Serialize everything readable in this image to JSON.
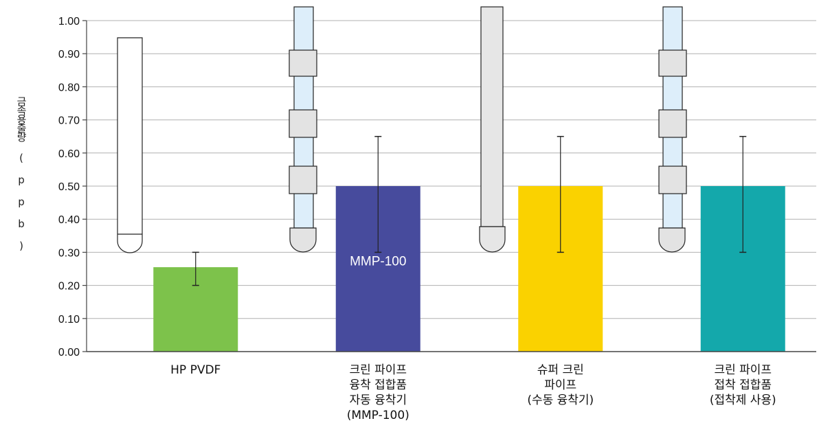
{
  "chart_data": {
    "type": "bar",
    "ylabel": "금속용출량 ( p p b )",
    "ylim": [
      0,
      1.0
    ],
    "yticks": [
      "0.00",
      "0.10",
      "0.20",
      "0.30",
      "0.40",
      "0.50",
      "0.60",
      "0.70",
      "0.80",
      "0.90",
      "1.00"
    ],
    "grid": true,
    "categories": [
      {
        "lines": [
          "HP PVDF"
        ]
      },
      {
        "lines": [
          "크린 파이프",
          "융착 접합품",
          "자동 융착기",
          "(MMP-100)"
        ]
      },
      {
        "lines": [
          "슈퍼 크린",
          "파이프",
          "(수동 융착기)"
        ]
      },
      {
        "lines": [
          "크린 파이프",
          "접착 접합품",
          "(접착제 사용)"
        ]
      }
    ],
    "values": [
      0.255,
      0.5,
      0.5,
      0.5
    ],
    "error_low": [
      0.2,
      0.3,
      0.3,
      0.3
    ],
    "error_high": [
      0.3,
      0.65,
      0.65,
      0.65
    ],
    "bar_labels": [
      "",
      "MMP-100",
      "",
      ""
    ],
    "colors": [
      "#7dc24b",
      "#474b9d",
      "#fad200",
      "#14a8ab"
    ]
  }
}
